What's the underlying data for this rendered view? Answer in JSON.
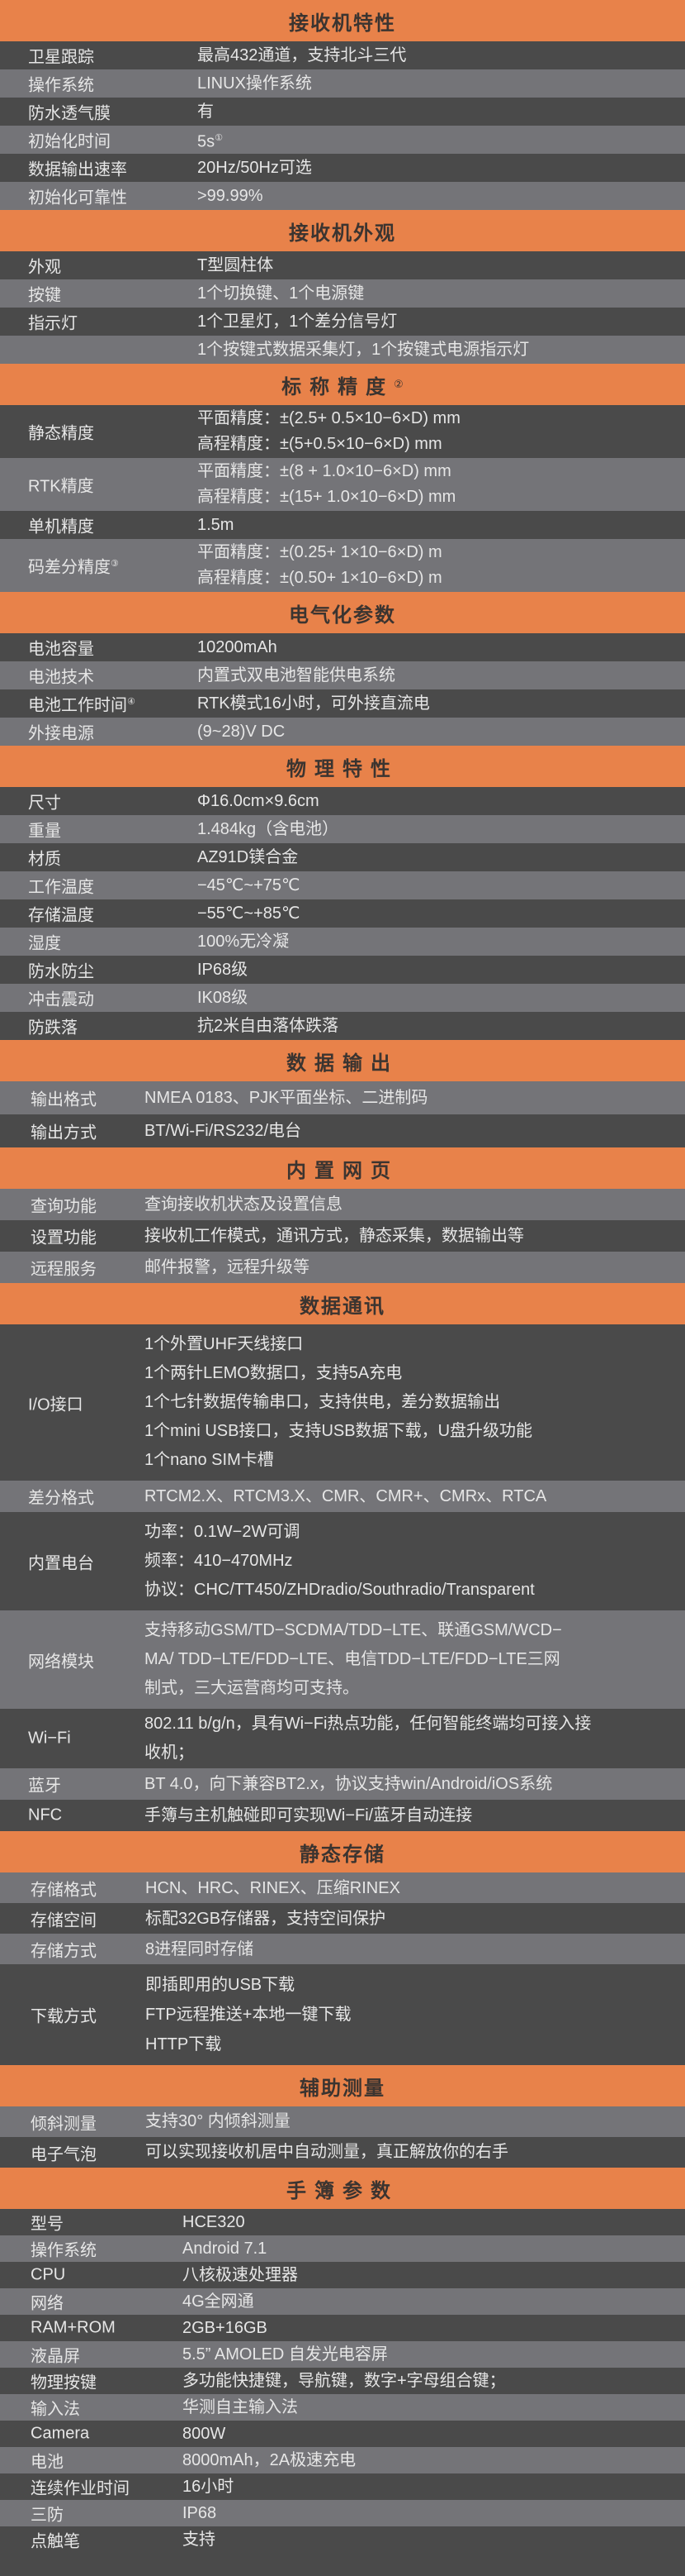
{
  "colors": {
    "header": "#e8824a",
    "row_dark": "#4a4a4a",
    "row_light": "#747478",
    "text": "#e6e6e6",
    "header_text": "#3b3430"
  },
  "sections": [
    {
      "title": "接收机特性",
      "rows": [
        {
          "label": "卫星跟踪",
          "values": [
            "最高432通道，支持北斗三代"
          ]
        },
        {
          "label": "操作系统",
          "values": [
            "LINUX操作系统"
          ]
        },
        {
          "label": "防水透气膜",
          "values": [
            "有"
          ]
        },
        {
          "label": "初始化时间",
          "values": [
            "5s"
          ],
          "value_note": "①"
        },
        {
          "label": "数据输出速率",
          "values": [
            "20Hz/50Hz可选"
          ]
        },
        {
          "label": "初始化可靠性",
          "values": [
            ">99.99%"
          ]
        }
      ]
    },
    {
      "title": "接收机外观",
      "rows": [
        {
          "label": "外观",
          "values": [
            "T型圆柱体"
          ]
        },
        {
          "label": "按键",
          "values": [
            "1个切换键、1个电源键"
          ]
        },
        {
          "label": "指示灯",
          "values": [
            "1个卫星灯，1个差分信号灯"
          ]
        },
        {
          "label": "",
          "values": [
            "1个按键式数据采集灯，1个按键式电源指示灯"
          ]
        }
      ]
    },
    {
      "title": "标称精度",
      "note": "②",
      "rows": [
        {
          "label": "静态精度",
          "values": [
            "平面精度：±(2.5+ 0.5×10−6×D) mm",
            "高程精度：±(5+0.5×10−6×D) mm"
          ]
        },
        {
          "label": "RTK精度",
          "values": [
            "平面精度：±(8 + 1.0×10−6×D) mm",
            "高程精度：±(15+ 1.0×10−6×D) mm"
          ]
        },
        {
          "label": "单机精度",
          "values": [
            "1.5m"
          ]
        },
        {
          "label": "码差分精度",
          "label_note": "③",
          "values": [
            "平面精度：±(0.25+ 1×10−6×D) m",
            "高程精度：±(0.50+ 1×10−6×D) m"
          ]
        }
      ]
    },
    {
      "title": "电气化参数",
      "rows": [
        {
          "label": "电池容量",
          "values": [
            "10200mAh"
          ]
        },
        {
          "label": "电池技术",
          "values": [
            "内置式双电池智能供电系统"
          ]
        },
        {
          "label": "电池工作时间",
          "label_note": "④",
          "values": [
            "RTK模式16小时，可外接直流电"
          ]
        },
        {
          "label": "外接电源",
          "values": [
            "(9~28)V DC"
          ]
        }
      ]
    },
    {
      "title": "物理特性",
      "rows": [
        {
          "label": "尺寸",
          "values": [
            "Φ16.0cm×9.6cm"
          ]
        },
        {
          "label": "重量",
          "values": [
            "1.484kg（含电池）"
          ]
        },
        {
          "label": "材质",
          "values": [
            "AZ91D镁合金"
          ]
        },
        {
          "label": "工作温度",
          "values": [
            "−45℃~+75℃"
          ]
        },
        {
          "label": "存储温度",
          "values": [
            "−55℃~+85℃"
          ]
        },
        {
          "label": "湿度",
          "values": [
            "100%无冷凝"
          ]
        },
        {
          "label": "防水防尘",
          "values": [
            "IP68级"
          ]
        },
        {
          "label": "冲击震动",
          "values": [
            "IK08级"
          ]
        },
        {
          "label": "防跌落",
          "values": [
            "抗2米自由落体跌落"
          ]
        }
      ]
    },
    {
      "title": "数据输出",
      "rows": [
        {
          "label": "输出格式",
          "values": [
            "NMEA 0183、PJK平面坐标、二进制码"
          ]
        },
        {
          "label": "输出方式",
          "values": [
            "BT/Wi-Fi/RS232/电台"
          ]
        }
      ]
    },
    {
      "title": "内置网页",
      "rows": [
        {
          "label": "查询功能",
          "values": [
            "查询接收机状态及设置信息"
          ]
        },
        {
          "label": "设置功能",
          "values": [
            "接收机工作模式，通讯方式，静态采集，数据输出等"
          ]
        },
        {
          "label": "远程服务",
          "values": [
            "邮件报警，远程升级等"
          ]
        }
      ]
    },
    {
      "title": "数据通讯",
      "rows": [
        {
          "label": "I/O接口",
          "values": [
            "1个外置UHF天线接口",
            "1个两针LEMO数据口，支持5A充电",
            "1个七针数据传输串口，支持供电，差分数据输出",
            "1个mini USB接口，支持USB数据下载，U盘升级功能",
            "1个nano SIM卡槽"
          ]
        },
        {
          "label": "差分格式",
          "values": [
            "RTCM2.X、RTCM3.X、CMR、CMR+、CMRx、RTCA"
          ]
        },
        {
          "label": "内置电台",
          "values": [
            "功率：0.1W−2W可调",
            "频率：410−470MHz",
            "协议：CHC/TT450/ZHDradio/Southradio/Transparent"
          ]
        },
        {
          "label": "网络模块",
          "values": [
            "支持移动GSM/TD−SCDMA/TDD−LTE、联通GSM/WCD−",
            "MA/ TDD−LTE/FDD−LTE、电信TDD−LTE/FDD−LTE三网",
            "制式，三大运营商均可支持。"
          ]
        },
        {
          "label": "Wi−Fi",
          "values": [
            "802.11 b/g/n，具有Wi−Fi热点功能，任何智能终端均可接入接",
            "收机；"
          ]
        },
        {
          "label": "蓝牙",
          "values": [
            "BT 4.0，向下兼容BT2.x，协议支持win/Android/iOS系统"
          ]
        },
        {
          "label": "NFC",
          "values": [
            "手簿与主机触碰即可实现Wi−Fi/蓝牙自动连接"
          ]
        }
      ]
    },
    {
      "title": "静态存储",
      "rows": [
        {
          "label": "存储格式",
          "values": [
            "HCN、HRC、RINEX、压缩RINEX"
          ]
        },
        {
          "label": "存储空间",
          "values": [
            "标配32GB存储器，支持空间保护"
          ]
        },
        {
          "label": "存储方式",
          "values": [
            "8进程同时存储"
          ]
        },
        {
          "label": "下载方式",
          "values": [
            "即插即用的USB下载",
            "FTP远程推送+本地一键下载",
            "HTTP下载"
          ]
        }
      ]
    },
    {
      "title": "辅助测量",
      "rows": [
        {
          "label": "倾斜测量",
          "values": [
            "支持30° 内倾斜测量"
          ]
        },
        {
          "label": "电子气泡",
          "values": [
            "可以实现接收机居中自动测量，真正解放你的右手"
          ]
        }
      ]
    },
    {
      "title": "手簿参数",
      "rows": [
        {
          "label": "型号",
          "values": [
            "HCE320"
          ]
        },
        {
          "label": "操作系统",
          "values": [
            "Android 7.1"
          ]
        },
        {
          "label": "CPU",
          "values": [
            "八核极速处理器"
          ]
        },
        {
          "label": "网络",
          "values": [
            "4G全网通"
          ]
        },
        {
          "label": "RAM+ROM",
          "values": [
            "2GB+16GB"
          ]
        },
        {
          "label": "液晶屏",
          "values": [
            "5.5” AMOLED 自发光电容屏"
          ]
        },
        {
          "label": "物理按键",
          "values": [
            "多功能快捷键，导航键，数字+字母组合键；"
          ]
        },
        {
          "label": "输入法",
          "values": [
            "华测自主输入法"
          ]
        },
        {
          "label": "Camera",
          "values": [
            "800W"
          ]
        },
        {
          "label": "电池",
          "values": [
            "8000mAh，2A极速充电"
          ]
        },
        {
          "label": "连续作业时间",
          "values": [
            "16小时"
          ]
        },
        {
          "label": "三防",
          "values": [
            "IP68"
          ]
        },
        {
          "label": "点触笔",
          "values": [
            "支持"
          ]
        }
      ]
    }
  ]
}
